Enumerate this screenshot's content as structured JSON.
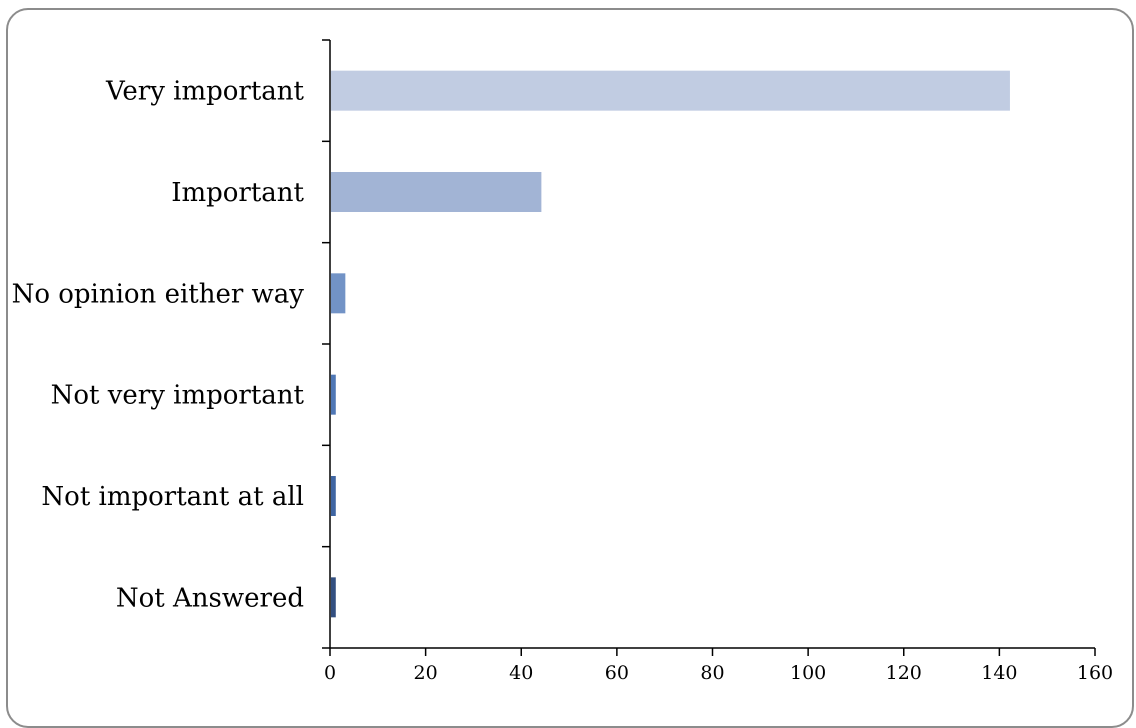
{
  "chart_data": {
    "type": "bar",
    "orientation": "horizontal",
    "categories": [
      "Very important",
      "Important",
      "No opinion either way",
      "Not very important",
      "Not important at all",
      "Not Answered"
    ],
    "values": [
      142,
      44,
      3,
      1,
      1,
      1
    ],
    "xlim": [
      0,
      160
    ],
    "x_ticks": [
      "0",
      "20",
      "40",
      "60",
      "80",
      "100",
      "120",
      "140",
      "160"
    ],
    "bar_colors": [
      "#c1cce2",
      "#a2b4d5",
      "#7293c6",
      "#4f77b5",
      "#3f65a2",
      "#334f80"
    ],
    "title": "",
    "xlabel": "",
    "ylabel": "",
    "grid": false,
    "legend": "none"
  }
}
